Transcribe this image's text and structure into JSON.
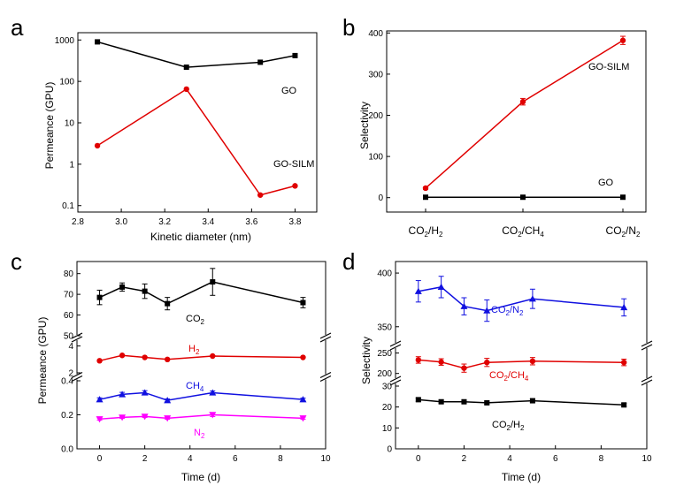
{
  "chart_data": [
    {
      "id": "a",
      "type": "line",
      "panel_label": "a",
      "xlabel": "Kinetic diameter (nm)",
      "ylabel": "Permeance (GPU)",
      "x_scale": "linear",
      "y_scale": "log",
      "xlim": [
        2.8,
        3.9
      ],
      "ylim": [
        0.07,
        1500
      ],
      "xticks": [
        2.8,
        3.0,
        3.2,
        3.4,
        3.6,
        3.8
      ],
      "xtick_labels": [
        "2.8",
        "3.0",
        "3.2",
        "3.4",
        "3.6",
        "3.8"
      ],
      "yticks": [
        0.1,
        1,
        10,
        100,
        1000
      ],
      "ytick_labels": [
        "0.1",
        "1",
        "10",
        "100",
        "1000"
      ],
      "series": [
        {
          "name": "GO",
          "color": "#000000",
          "marker": "square",
          "x": [
            2.89,
            3.3,
            3.64,
            3.8
          ],
          "y": [
            900,
            220,
            290,
            420
          ]
        },
        {
          "name": "GO-SILM",
          "color": "#e00000",
          "marker": "circle",
          "x": [
            2.89,
            3.3,
            3.64,
            3.8
          ],
          "y": [
            2.8,
            65,
            0.18,
            0.3
          ]
        }
      ]
    },
    {
      "id": "b",
      "type": "line",
      "panel_label": "b",
      "xlabel": "",
      "ylabel": "Selectivity",
      "ylim": [
        -35,
        405
      ],
      "yticks": [
        0,
        100,
        200,
        300,
        400
      ],
      "ytick_labels": [
        "0",
        "100",
        "200",
        "300",
        "400"
      ],
      "categories": [
        {
          "main": "CO",
          "sub1": "2",
          "sep": "/H",
          "sub2": "2"
        },
        {
          "main": "CO",
          "sub1": "2",
          "sep": "/CH",
          "sub2": "4"
        },
        {
          "main": "CO",
          "sub1": "2",
          "sep": "/N",
          "sub2": "2"
        }
      ],
      "series": [
        {
          "name": "GO-SILM",
          "color": "#e00000",
          "marker": "circle",
          "values": [
            23,
            233,
            382
          ],
          "errors": [
            3,
            8,
            10
          ]
        },
        {
          "name": "GO",
          "color": "#000000",
          "marker": "square",
          "values": [
            1,
            1,
            1
          ],
          "errors": [
            0,
            0,
            0
          ]
        }
      ]
    },
    {
      "id": "c",
      "type": "line",
      "panel_label": "c",
      "xlabel": "Time (d)",
      "ylabel": "Permeance (GPU)",
      "xlim": [
        -1,
        10
      ],
      "xticks": [
        0,
        2,
        4,
        6,
        8,
        10
      ],
      "xtick_labels": [
        "0",
        "2",
        "4",
        "6",
        "8",
        "10"
      ],
      "segments": [
        {
          "range": [
            0,
            0.4
          ],
          "ticks": [
            0.0,
            0.2,
            0.4
          ],
          "labels": [
            "0.0",
            "0.2",
            "0.4"
          ]
        },
        {
          "range": [
            2,
            4.5
          ],
          "ticks": [
            2,
            4
          ],
          "labels": [
            "2",
            "4"
          ]
        },
        {
          "range": [
            50,
            82
          ],
          "ticks": [
            50,
            60,
            70,
            80
          ],
          "labels": [
            "50",
            "60",
            "70",
            "80"
          ]
        }
      ],
      "series": [
        {
          "name": "CO",
          "name_sub": "2",
          "color": "#000000",
          "marker": "square",
          "segment": 2,
          "x": [
            0,
            1,
            2,
            3,
            5,
            9
          ],
          "y": [
            68.5,
            73.5,
            71.5,
            65.5,
            76,
            66
          ],
          "errors": [
            3.5,
            2,
            3.5,
            3,
            6.5,
            2.5
          ]
        },
        {
          "name": "H",
          "name_sub": "2",
          "color": "#e00000",
          "marker": "circle",
          "segment": 1,
          "x": [
            0,
            1,
            2,
            3,
            5,
            9
          ],
          "y": [
            2.9,
            3.3,
            3.15,
            3.0,
            3.25,
            3.15
          ],
          "errors": [
            0,
            0,
            0,
            0,
            0,
            0
          ]
        },
        {
          "name": "CH",
          "name_sub": "4",
          "color": "#1010e0",
          "marker": "triangle-up",
          "segment": 0,
          "x": [
            0,
            1,
            2,
            3,
            5,
            9
          ],
          "y": [
            0.29,
            0.32,
            0.33,
            0.285,
            0.33,
            0.29
          ],
          "errors": [
            0.01,
            0.012,
            0.012,
            0.008,
            0.01,
            0.008
          ]
        },
        {
          "name": "N",
          "name_sub": "2",
          "color": "#ff00ff",
          "marker": "triangle-down",
          "segment": 0,
          "x": [
            0,
            1,
            2,
            3,
            5,
            9
          ],
          "y": [
            0.175,
            0.185,
            0.19,
            0.18,
            0.2,
            0.18
          ],
          "errors": [
            0.006,
            0.006,
            0.006,
            0.006,
            0.01,
            0.006
          ]
        }
      ]
    },
    {
      "id": "d",
      "type": "line",
      "panel_label": "d",
      "xlabel": "Time (d)",
      "ylabel": "Selectivity",
      "xlim": [
        -1,
        10
      ],
      "xticks": [
        0,
        2,
        4,
        6,
        8,
        10
      ],
      "xtick_labels": [
        "0",
        "2",
        "4",
        "6",
        "8",
        "10"
      ],
      "segments": [
        {
          "range": [
            0,
            30
          ],
          "ticks": [
            0,
            10,
            20,
            30
          ],
          "labels": [
            "0",
            "10",
            "20",
            "30"
          ]
        },
        {
          "range": [
            195,
            262
          ],
          "ticks": [
            200,
            250
          ],
          "labels": [
            "200",
            "250"
          ]
        },
        {
          "range": [
            335,
            405
          ],
          "ticks": [
            350,
            400
          ],
          "labels": [
            "350",
            "400"
          ]
        }
      ],
      "series": [
        {
          "name": "CO",
          "name_sub": "2",
          "name_rest": "/N",
          "name_sub2": "2",
          "color": "#1010e0",
          "marker": "triangle-up",
          "segment": 2,
          "x": [
            0,
            1,
            2,
            3,
            5,
            9
          ],
          "y": [
            383,
            387,
            369,
            365,
            376,
            368
          ],
          "errors": [
            10,
            10,
            8,
            10,
            9,
            8
          ]
        },
        {
          "name": "CO",
          "name_sub": "2",
          "name_rest": "/CH",
          "name_sub2": "4",
          "color": "#e00000",
          "marker": "circle",
          "segment": 1,
          "x": [
            0,
            1,
            2,
            3,
            5,
            9
          ],
          "y": [
            233,
            228,
            213,
            227,
            230,
            227
          ],
          "errors": [
            8,
            8,
            10,
            10,
            9,
            8
          ]
        },
        {
          "name": "CO",
          "name_sub": "2",
          "name_rest": "/H",
          "name_sub2": "2",
          "color": "#000000",
          "marker": "square",
          "segment": 0,
          "x": [
            0,
            1,
            2,
            3,
            5,
            9
          ],
          "y": [
            23.5,
            22.5,
            22.5,
            22,
            23,
            21
          ],
          "errors": [
            0.8,
            0.8,
            0.8,
            0.8,
            0.8,
            0.8
          ]
        }
      ]
    }
  ]
}
